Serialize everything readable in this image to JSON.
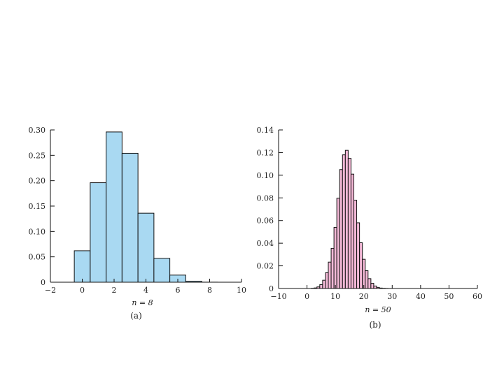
{
  "chart_data": [
    {
      "type": "bar",
      "panel_label": "(a)",
      "xlabel": "n = 8",
      "xlim": [
        -2,
        10
      ],
      "ylim": [
        0,
        0.3
      ],
      "xticks": [
        "−2",
        "0",
        "2",
        "4",
        "6",
        "8",
        "10"
      ],
      "yticks": [
        "0",
        "0.05",
        "0.10",
        "0.15",
        "0.20",
        "0.25",
        "0.30"
      ],
      "fill_color": "#a9d9f2",
      "edge_color": "#111111",
      "grid": false,
      "categories": [
        0,
        1,
        2,
        3,
        4,
        5,
        6,
        7,
        8
      ],
      "values": [
        0.062,
        0.196,
        0.296,
        0.254,
        0.136,
        0.047,
        0.014,
        0.002,
        0.0001
      ]
    },
    {
      "type": "bar",
      "panel_label": "(b)",
      "xlabel": "n = 50",
      "xlim": [
        -10,
        60
      ],
      "ylim": [
        0,
        0.14
      ],
      "xticks": [
        "−10",
        "0",
        "10",
        "20",
        "30",
        "40",
        "50",
        "60"
      ],
      "yticks": [
        "0",
        "0.02",
        "0.04",
        "0.06",
        "0.08",
        "0.10",
        "0.12",
        "0.14"
      ],
      "fill_color": "#f4b9d7",
      "edge_color": "#111111",
      "grid": false,
      "categories": [
        2,
        3,
        4,
        5,
        6,
        7,
        8,
        9,
        10,
        11,
        12,
        13,
        14,
        15,
        16,
        17,
        18,
        19,
        20,
        21,
        22,
        23,
        24,
        25,
        26,
        27,
        28,
        29,
        30
      ],
      "values": [
        0.0002,
        0.0005,
        0.0014,
        0.0034,
        0.0073,
        0.0139,
        0.0233,
        0.0355,
        0.054,
        0.0797,
        0.105,
        0.118,
        0.122,
        0.115,
        0.101,
        0.078,
        0.058,
        0.0404,
        0.0258,
        0.0157,
        0.0087,
        0.0046,
        0.0022,
        0.001,
        0.0004,
        0.0002,
        0.0001,
        3e-05,
        1e-05
      ]
    }
  ]
}
